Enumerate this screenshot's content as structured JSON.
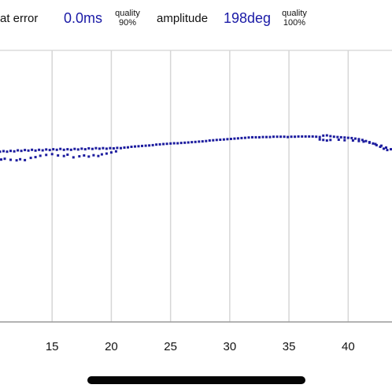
{
  "stats": {
    "beat_error_label": "at error",
    "beat_error_value": "0.0ms",
    "beat_error_quality_label": "quality",
    "beat_error_quality_value": "90%",
    "amplitude_label": "amplitude",
    "amplitude_value": "198deg",
    "amplitude_quality_label": "quality",
    "amplitude_quality_value": "100%"
  },
  "colors": {
    "value_text": "#1a1aa6",
    "dots": "#1c1c9e",
    "grid": "#d6d6d6",
    "axis": "#9a9a9a"
  },
  "chart_data": {
    "type": "scatter",
    "title": "",
    "xlabel": "",
    "ylabel": "",
    "xlim": [
      10.6,
      43.7
    ],
    "ylim": [
      0,
      1
    ],
    "x_ticks": [
      15,
      20,
      25,
      30,
      35,
      40
    ],
    "x_tick_labels": [
      "15",
      "20",
      "25",
      "30",
      "35",
      "40"
    ],
    "grid": "vertical",
    "series": [
      {
        "points": [
          [
            10.6,
            0.627
          ],
          [
            10.9,
            0.629
          ],
          [
            11.2,
            0.627
          ],
          [
            11.5,
            0.63
          ],
          [
            11.8,
            0.628
          ],
          [
            12.1,
            0.632
          ],
          [
            12.4,
            0.63
          ],
          [
            12.7,
            0.633
          ],
          [
            13.0,
            0.631
          ],
          [
            13.3,
            0.634
          ],
          [
            13.6,
            0.631
          ],
          [
            13.9,
            0.634
          ],
          [
            14.2,
            0.632
          ],
          [
            14.5,
            0.635
          ],
          [
            14.8,
            0.633
          ],
          [
            15.1,
            0.636
          ],
          [
            15.4,
            0.634
          ],
          [
            15.7,
            0.637
          ],
          [
            16.0,
            0.634
          ],
          [
            16.3,
            0.636
          ],
          [
            16.6,
            0.634
          ],
          [
            16.9,
            0.637
          ],
          [
            17.2,
            0.635
          ],
          [
            17.5,
            0.638
          ],
          [
            17.8,
            0.636
          ],
          [
            18.1,
            0.639
          ],
          [
            18.4,
            0.637
          ],
          [
            18.7,
            0.64
          ],
          [
            19.0,
            0.638
          ],
          [
            19.3,
            0.64
          ],
          [
            10.7,
            0.598
          ],
          [
            11.0,
            0.601
          ],
          [
            11.5,
            0.597
          ],
          [
            12.0,
            0.595
          ],
          [
            12.3,
            0.599
          ],
          [
            12.7,
            0.596
          ],
          [
            13.2,
            0.604
          ],
          [
            13.6,
            0.607
          ],
          [
            14.0,
            0.612
          ],
          [
            14.5,
            0.615
          ],
          [
            15.0,
            0.618
          ],
          [
            15.5,
            0.613
          ],
          [
            16.0,
            0.611
          ],
          [
            16.3,
            0.616
          ],
          [
            16.8,
            0.606
          ],
          [
            17.3,
            0.61
          ],
          [
            17.7,
            0.613
          ],
          [
            18.1,
            0.609
          ],
          [
            18.5,
            0.614
          ],
          [
            18.9,
            0.611
          ],
          [
            19.2,
            0.617
          ],
          [
            19.6,
            0.62
          ],
          [
            20.0,
            0.624
          ],
          [
            20.4,
            0.628
          ],
          [
            19.6,
            0.638
          ],
          [
            19.9,
            0.64
          ],
          [
            20.2,
            0.639
          ],
          [
            20.5,
            0.641
          ],
          [
            20.8,
            0.64
          ],
          [
            21.1,
            0.642
          ],
          [
            21.4,
            0.643
          ],
          [
            21.7,
            0.645
          ],
          [
            22.0,
            0.646
          ],
          [
            22.3,
            0.647
          ],
          [
            22.6,
            0.648
          ],
          [
            22.9,
            0.649
          ],
          [
            23.2,
            0.65
          ],
          [
            23.5,
            0.651
          ],
          [
            23.8,
            0.653
          ],
          [
            24.1,
            0.654
          ],
          [
            24.4,
            0.655
          ],
          [
            24.7,
            0.656
          ],
          [
            25.0,
            0.657
          ],
          [
            25.3,
            0.658
          ],
          [
            25.6,
            0.658
          ],
          [
            25.9,
            0.659
          ],
          [
            26.2,
            0.66
          ],
          [
            26.5,
            0.661
          ],
          [
            26.8,
            0.662
          ],
          [
            27.1,
            0.663
          ],
          [
            27.4,
            0.664
          ],
          [
            27.7,
            0.665
          ],
          [
            28.0,
            0.666
          ],
          [
            28.3,
            0.668
          ],
          [
            28.6,
            0.669
          ],
          [
            28.9,
            0.67
          ],
          [
            29.2,
            0.671
          ],
          [
            29.5,
            0.672
          ],
          [
            29.8,
            0.673
          ],
          [
            30.1,
            0.674
          ],
          [
            30.4,
            0.675
          ],
          [
            30.7,
            0.676
          ],
          [
            31.0,
            0.677
          ],
          [
            31.3,
            0.678
          ],
          [
            31.6,
            0.679
          ],
          [
            31.9,
            0.68
          ],
          [
            32.2,
            0.68
          ],
          [
            32.5,
            0.68
          ],
          [
            32.8,
            0.681
          ],
          [
            33.1,
            0.681
          ],
          [
            33.4,
            0.681
          ],
          [
            33.7,
            0.682
          ],
          [
            34.0,
            0.682
          ],
          [
            34.3,
            0.682
          ],
          [
            34.6,
            0.682
          ],
          [
            34.9,
            0.681
          ],
          [
            35.2,
            0.682
          ],
          [
            35.5,
            0.682
          ],
          [
            35.8,
            0.683
          ],
          [
            36.1,
            0.683
          ],
          [
            36.4,
            0.683
          ],
          [
            36.7,
            0.683
          ],
          [
            37.0,
            0.683
          ],
          [
            37.3,
            0.682
          ],
          [
            37.6,
            0.681
          ],
          [
            37.9,
            0.686
          ],
          [
            38.2,
            0.687
          ],
          [
            38.5,
            0.684
          ],
          [
            38.8,
            0.682
          ],
          [
            39.1,
            0.681
          ],
          [
            39.4,
            0.68
          ],
          [
            39.7,
            0.679
          ],
          [
            40.0,
            0.678
          ],
          [
            40.3,
            0.677
          ],
          [
            40.6,
            0.675
          ],
          [
            40.9,
            0.673
          ],
          [
            41.2,
            0.67
          ],
          [
            41.5,
            0.666
          ],
          [
            41.8,
            0.662
          ],
          [
            42.1,
            0.657
          ],
          [
            42.4,
            0.651
          ],
          [
            42.7,
            0.645
          ],
          [
            43.0,
            0.638
          ],
          [
            43.3,
            0.633
          ],
          [
            37.6,
            0.672
          ],
          [
            37.9,
            0.67
          ],
          [
            38.2,
            0.668
          ],
          [
            38.5,
            0.67
          ],
          [
            39.2,
            0.671
          ],
          [
            39.7,
            0.669
          ],
          [
            40.4,
            0.668
          ],
          [
            40.9,
            0.666
          ],
          [
            41.3,
            0.664
          ],
          [
            41.8,
            0.66
          ],
          [
            42.3,
            0.655
          ],
          [
            42.8,
            0.649
          ],
          [
            43.2,
            0.642
          ],
          [
            43.6,
            0.636
          ]
        ]
      }
    ]
  }
}
